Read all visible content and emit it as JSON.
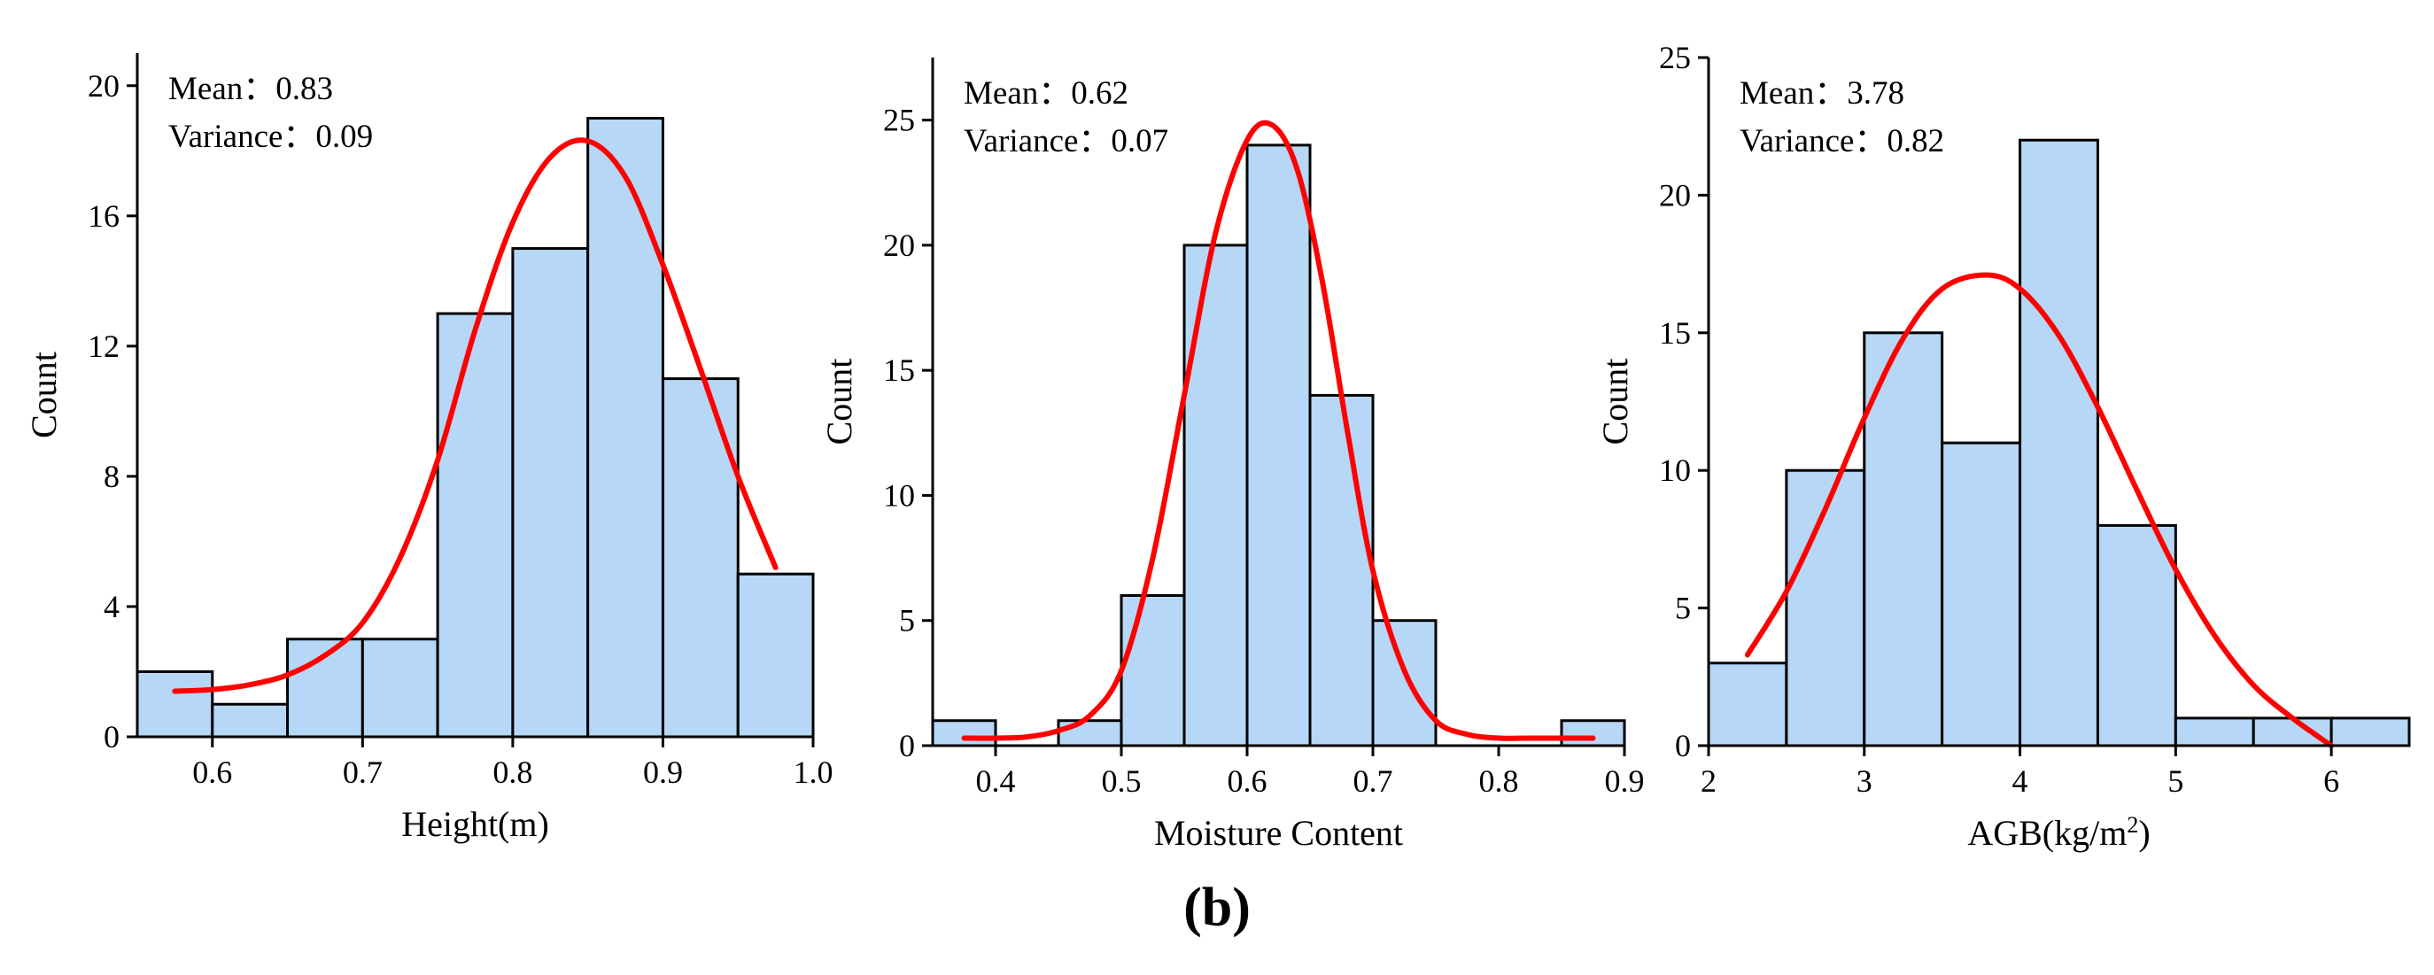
{
  "figure": {
    "caption": "(b)"
  },
  "style": {
    "bar_fill": "#b6d7f6",
    "bar_stroke": "#000000",
    "curve_color": "#ff0000",
    "axis_color": "#000000"
  },
  "chart_data": [
    {
      "type": "bar",
      "subtype": "histogram_with_normal_fit",
      "xlabel": "Height(m)",
      "ylabel": "Count",
      "xlim": [
        0.55,
        1.0
      ],
      "ylim": [
        0,
        21
      ],
      "xticks": [
        "0.6",
        "0.7",
        "0.8",
        "0.9",
        "1.0"
      ],
      "xtick_values": [
        0.6,
        0.7,
        0.8,
        0.9,
        1.0
      ],
      "yticks": [
        "0",
        "4",
        "8",
        "12",
        "16",
        "20"
      ],
      "ytick_values": [
        0,
        4,
        8,
        12,
        16,
        20
      ],
      "bin_edges": [
        0.55,
        0.6,
        0.65,
        0.7,
        0.75,
        0.8,
        0.85,
        0.9,
        0.95,
        1.0
      ],
      "values": [
        2,
        1,
        3,
        3,
        13,
        15,
        19,
        11,
        5
      ],
      "fit_curve": {
        "x": [
          0.575,
          0.6,
          0.625,
          0.65,
          0.675,
          0.7,
          0.725,
          0.75,
          0.775,
          0.8,
          0.825,
          0.85,
          0.875,
          0.9,
          0.925,
          0.95,
          0.975
        ],
        "y": [
          1.4,
          1.45,
          1.6,
          1.9,
          2.5,
          3.5,
          5.5,
          8.5,
          12.5,
          15.8,
          17.8,
          18.3,
          17.2,
          14.5,
          11.3,
          8.0,
          5.2
        ]
      },
      "stats": {
        "mean_label": "Mean：",
        "mean": "0.83",
        "variance_label": "Variance：",
        "variance": "0.09"
      }
    },
    {
      "type": "bar",
      "subtype": "histogram_with_normal_fit",
      "xlabel": "Moisture Content",
      "ylabel": "Count",
      "xlim": [
        0.35,
        0.9
      ],
      "ylim": [
        0,
        27.5
      ],
      "xticks": [
        "0.4",
        "0.5",
        "0.6",
        "0.7",
        "0.8",
        "0.9"
      ],
      "xtick_values": [
        0.4,
        0.5,
        0.6,
        0.7,
        0.8,
        0.9
      ],
      "yticks": [
        "0",
        "5",
        "10",
        "15",
        "20",
        "25"
      ],
      "ytick_values": [
        0,
        5,
        10,
        15,
        20,
        25
      ],
      "bin_edges": [
        0.35,
        0.4,
        0.45,
        0.5,
        0.55,
        0.6,
        0.65,
        0.7,
        0.75,
        0.8,
        0.85,
        0.9
      ],
      "values": [
        1,
        0,
        1,
        6,
        20,
        24,
        14,
        5,
        0,
        0,
        1
      ],
      "fit_curve": {
        "x": [
          0.375,
          0.4,
          0.425,
          0.45,
          0.475,
          0.5,
          0.525,
          0.55,
          0.575,
          0.6,
          0.62,
          0.64,
          0.66,
          0.68,
          0.7,
          0.725,
          0.75,
          0.775,
          0.8,
          0.825,
          0.85,
          0.875
        ],
        "y": [
          0.3,
          0.3,
          0.35,
          0.6,
          1.2,
          3.0,
          7.5,
          14.0,
          20.5,
          24.2,
          24.8,
          23.0,
          18.5,
          12.5,
          7.0,
          3.0,
          1.0,
          0.45,
          0.3,
          0.3,
          0.3,
          0.3
        ]
      },
      "stats": {
        "mean_label": "Mean：",
        "mean": "0.62",
        "variance_label": "Variance：",
        "variance": "0.07"
      }
    },
    {
      "type": "bar",
      "subtype": "histogram_with_normal_fit",
      "xlabel": "AGB(kg/m",
      "xlabel_sup": "2",
      "xlabel_end": ")",
      "ylabel": "Count",
      "xlim": [
        2.0,
        6.5
      ],
      "ylim": [
        0,
        25
      ],
      "xticks": [
        "2",
        "3",
        "4",
        "5",
        "6"
      ],
      "xtick_values": [
        2,
        3,
        4,
        5,
        6
      ],
      "yticks": [
        "0",
        "5",
        "10",
        "15",
        "20",
        "25"
      ],
      "ytick_values": [
        0,
        5,
        10,
        15,
        20,
        25
      ],
      "bin_edges": [
        2.0,
        2.5,
        3.0,
        3.5,
        4.0,
        4.5,
        5.0,
        5.5,
        6.0,
        6.5
      ],
      "values": [
        3,
        10,
        15,
        11,
        22,
        8,
        1,
        1,
        1
      ],
      "fit_curve": {
        "x": [
          2.25,
          2.5,
          2.75,
          3.0,
          3.25,
          3.5,
          3.78,
          4.0,
          4.25,
          4.5,
          4.75,
          5.0,
          5.25,
          5.5,
          5.75,
          6.0
        ],
        "y": [
          3.3,
          5.6,
          8.6,
          11.9,
          14.8,
          16.6,
          17.1,
          16.6,
          14.9,
          12.3,
          9.3,
          6.4,
          4.0,
          2.2,
          1.0,
          0.0
        ]
      },
      "stats": {
        "mean_label": "Mean：",
        "mean": "3.78",
        "variance_label": "Variance：",
        "variance": "0.82"
      }
    }
  ]
}
